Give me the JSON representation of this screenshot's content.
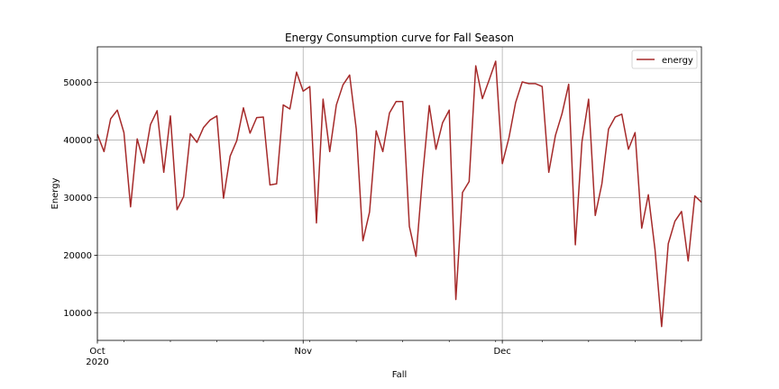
{
  "chart_data": {
    "type": "line",
    "title": "Energy Consumption curve for Fall Season",
    "xlabel": "Fall",
    "ylabel": "Energy",
    "x_start": "2020-10-01",
    "x_end": "2020-12-31",
    "xlim": [
      "2020-10-01",
      "2020-12-31"
    ],
    "ylim": [
      5200,
      56200
    ],
    "yticks": [
      10000,
      20000,
      30000,
      40000,
      50000
    ],
    "ytick_labels": [
      "10000",
      "20000",
      "30000",
      "40000",
      "50000"
    ],
    "major_xticks": [
      {
        "date": "2020-10-01",
        "label": "Oct",
        "sublabel": "2020"
      },
      {
        "date": "2020-11-01",
        "label": "Nov",
        "sublabel": ""
      },
      {
        "date": "2020-12-01",
        "label": "Dec",
        "sublabel": ""
      }
    ],
    "minor_xticks": [
      "2020-10-05",
      "2020-10-12",
      "2020-10-19",
      "2020-10-26",
      "2020-11-02",
      "2020-11-09",
      "2020-11-16",
      "2020-11-23",
      "2020-11-30",
      "2020-12-07",
      "2020-12-14",
      "2020-12-21",
      "2020-12-28"
    ],
    "grid": true,
    "legend_position": "top-right",
    "series": [
      {
        "name": "energy",
        "color": "#a52a2a",
        "values": [
          41000,
          38000,
          43700,
          45200,
          41300,
          28400,
          40200,
          36000,
          42700,
          45100,
          34400,
          44200,
          27900,
          30200,
          41100,
          39600,
          42200,
          43500,
          44200,
          29900,
          37200,
          39900,
          45600,
          41200,
          43900,
          44000,
          32200,
          32400,
          46100,
          45400,
          51800,
          48500,
          49300,
          25600,
          47100,
          38000,
          46100,
          49600,
          51300,
          41900,
          22500,
          27500,
          41600,
          38000,
          44700,
          46700,
          46700,
          25000,
          19800,
          33900,
          46000,
          38400,
          43000,
          45200,
          12300,
          30900,
          32800,
          52900,
          47200,
          50400,
          53700,
          35900,
          40400,
          46500,
          50100,
          49800,
          49800,
          49300,
          34400,
          40800,
          44600,
          49700,
          21800,
          39700,
          47100,
          26900,
          32400,
          41900,
          44000,
          44500,
          38400,
          41300,
          24700,
          30500,
          21000,
          7600,
          22000,
          25900,
          27600,
          19000,
          30300,
          29200
        ]
      }
    ]
  }
}
